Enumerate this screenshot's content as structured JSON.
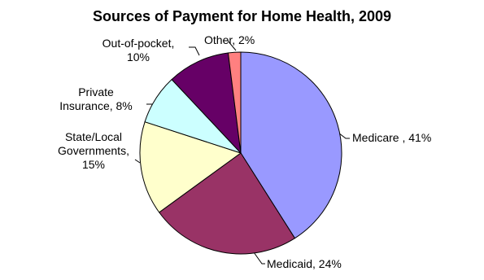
{
  "chart_data": {
    "type": "pie",
    "title": "Sources of Payment for Home Health, 2009",
    "values": [
      41,
      24,
      15,
      8,
      10,
      2
    ],
    "value_labels": [
      "Medicare , 41%",
      "Medicaid, 24%",
      "State/Local\nGovernments,\n15%",
      "Private\nInsurance, 8%",
      "Out-of-pocket,\n10%",
      "Other, 2%"
    ],
    "colors": [
      "#9999ff",
      "#993366",
      "#ffffcc",
      "#ccffff",
      "#660066",
      "#ff8080"
    ]
  }
}
